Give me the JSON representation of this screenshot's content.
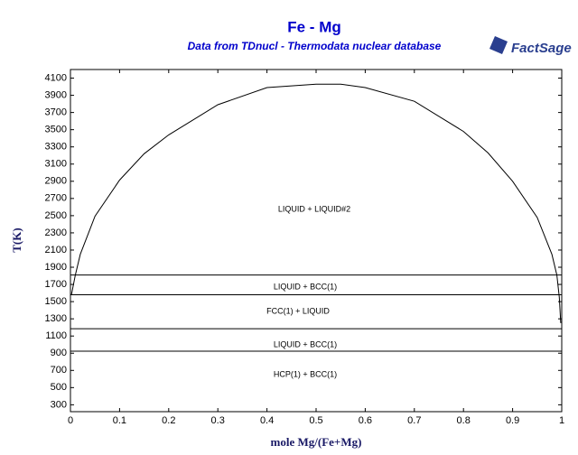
{
  "chart_data": {
    "type": "line",
    "title": "Fe - Mg",
    "subtitle": "Data from TDnucl - Thermodata nuclear database",
    "logo": "FactSage",
    "xlabel": "mole Mg/(Fe+Mg)",
    "ylabel": "T(K)",
    "xlim": [
      0,
      1
    ],
    "ylim": [
      220,
      4200
    ],
    "xticks": [
      0,
      0.1,
      0.2,
      0.3,
      0.4,
      0.5,
      0.6,
      0.7,
      0.8,
      0.9,
      1
    ],
    "yticks": [
      300,
      500,
      700,
      900,
      1100,
      1300,
      1500,
      1700,
      1900,
      2100,
      2300,
      2500,
      2700,
      2900,
      3100,
      3300,
      3500,
      3700,
      3900,
      4100
    ],
    "series": [
      {
        "color": "#000000",
        "x": [
          0.002,
          0.01,
          0.02,
          0.05,
          0.1,
          0.15,
          0.2,
          0.3,
          0.4,
          0.5,
          0.55,
          0.6,
          0.7,
          0.8,
          0.85,
          0.9,
          0.95,
          0.98,
          0.99,
          0.995,
          0.998
        ],
        "values": [
          1580,
          1809,
          2050,
          2494,
          2914,
          3220,
          3440,
          3790,
          3990,
          4030,
          4030,
          3990,
          3830,
          3480,
          3230,
          2900,
          2480,
          2050,
          1809,
          1550,
          1250
        ]
      }
    ],
    "horizontal_lines": [
      1809,
      1580,
      1185,
      923
    ],
    "annotations": [
      "LIQUID + LIQUID#2",
      "LIQUID + BCC(1)",
      "FCC(1) + LIQUID",
      "LIQUID + BCC(1)",
      "HCP(1) + BCC(1)"
    ]
  }
}
